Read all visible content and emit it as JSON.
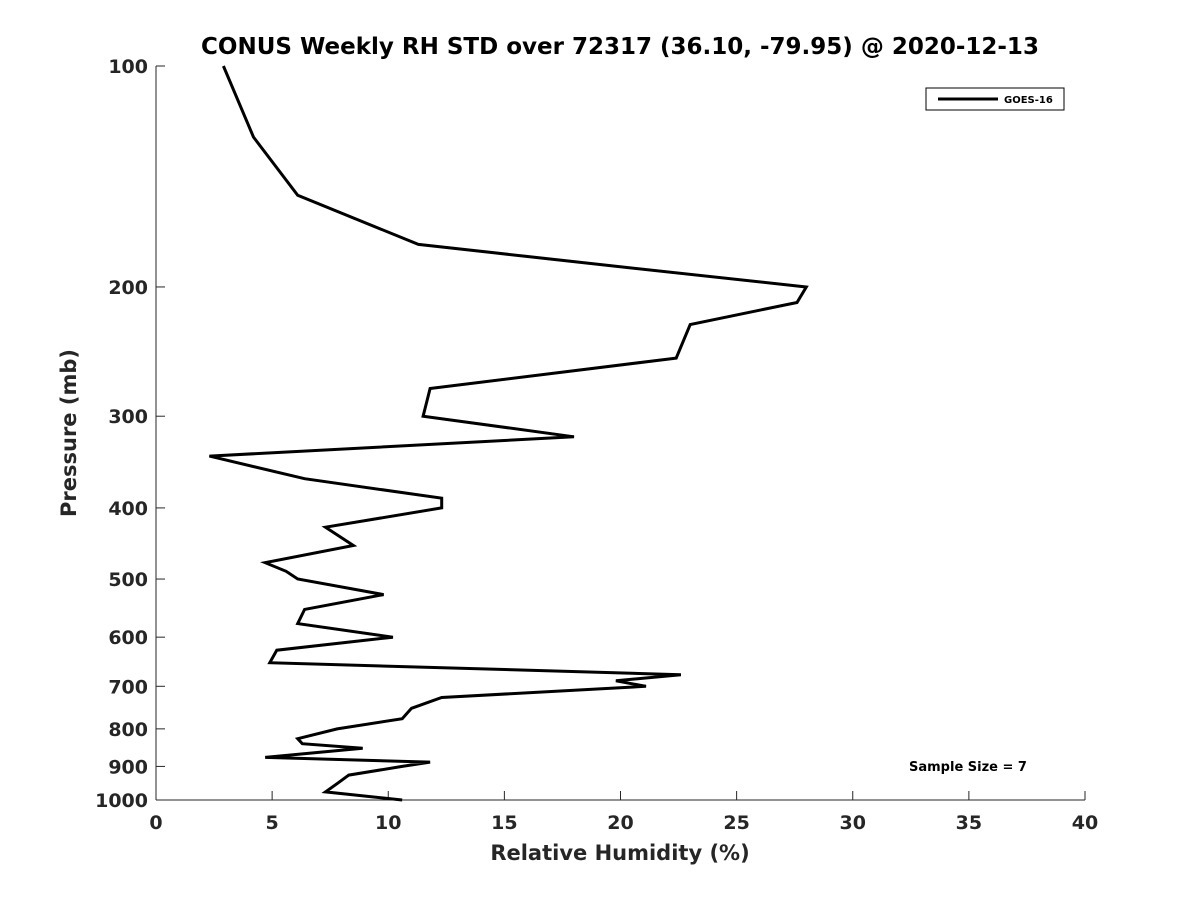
{
  "chart_data": {
    "type": "line",
    "title": "CONUS Weekly RH STD over 72317 (36.10, -79.95) @ 2020-12-13",
    "xlabel": "Relative Humidity (%)",
    "ylabel": "Pressure (mb)",
    "xlim": [
      0,
      40
    ],
    "ylim": [
      100,
      1000
    ],
    "y_scale": "log",
    "y_reversed": true,
    "x_ticks": [
      "0",
      "5",
      "10",
      "15",
      "20",
      "25",
      "30",
      "35",
      "40"
    ],
    "y_ticks": [
      "100",
      "200",
      "300",
      "400",
      "500",
      "600",
      "700",
      "800",
      "900",
      "1000"
    ],
    "grid": false,
    "legend_position": "top-right",
    "annotation": "Sample Size = 7",
    "line_color": "#000000",
    "series": [
      {
        "name": "GOES-16",
        "points": [
          [
            2.9,
            100
          ],
          [
            4.2,
            125
          ],
          [
            6.1,
            150
          ],
          [
            11.3,
            175
          ],
          [
            19.5,
            187
          ],
          [
            28.0,
            200
          ],
          [
            27.6,
            210
          ],
          [
            23.0,
            225
          ],
          [
            22.4,
            250
          ],
          [
            11.8,
            275
          ],
          [
            11.5,
            300
          ],
          [
            18.0,
            320
          ],
          [
            2.3,
            340
          ],
          [
            6.4,
            365
          ],
          [
            12.3,
            388
          ],
          [
            12.3,
            400
          ],
          [
            7.3,
            425
          ],
          [
            8.5,
            450
          ],
          [
            4.7,
            475
          ],
          [
            5.6,
            488
          ],
          [
            6.1,
            500
          ],
          [
            9.8,
            525
          ],
          [
            6.4,
            550
          ],
          [
            6.1,
            575
          ],
          [
            10.2,
            600
          ],
          [
            5.2,
            625
          ],
          [
            4.9,
            650
          ],
          [
            22.6,
            675
          ],
          [
            19.8,
            688
          ],
          [
            21.1,
            700
          ],
          [
            12.3,
            725
          ],
          [
            11.0,
            750
          ],
          [
            10.6,
            775
          ],
          [
            7.8,
            800
          ],
          [
            6.1,
            825
          ],
          [
            6.3,
            838
          ],
          [
            8.9,
            850
          ],
          [
            4.7,
            875
          ],
          [
            11.8,
            888
          ],
          [
            10.6,
            900
          ],
          [
            8.3,
            925
          ],
          [
            7.8,
            950
          ],
          [
            7.3,
            975
          ],
          [
            10.6,
            1000
          ]
        ]
      }
    ]
  }
}
